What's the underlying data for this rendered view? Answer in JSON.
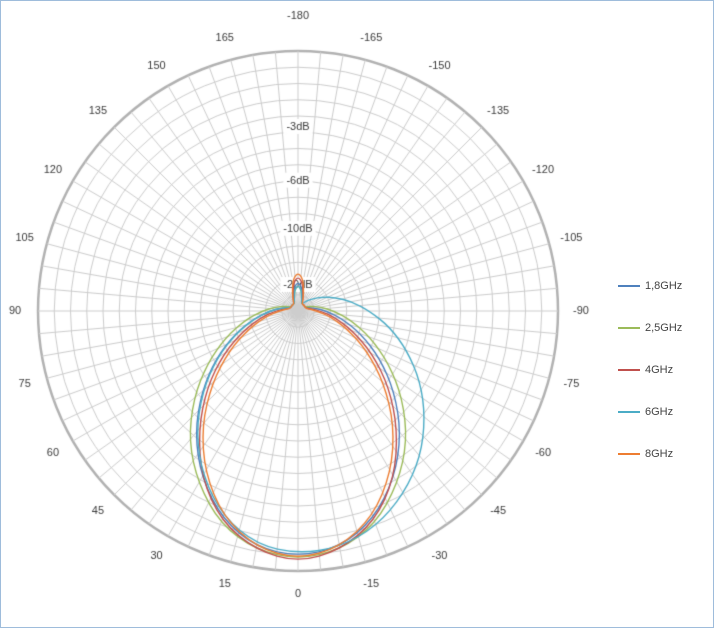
{
  "figure": {
    "background_color": "#ffffff",
    "border_color": "#9ebcdb",
    "grid_color": "#cdcdcd",
    "outer_ring_color": "#b2b2b2",
    "label_color": "#3c3c3c"
  },
  "chart_data": {
    "type": "line",
    "subtype": "polar-radiation-pattern",
    "title": "",
    "angle_unit": "degrees",
    "angle_zero_position": "bottom",
    "positive_angles_side": "left",
    "angle_ticks": [
      -180,
      -165,
      -150,
      -135,
      -120,
      -105,
      -90,
      -75,
      -60,
      -45,
      -30,
      -15,
      0,
      15,
      30,
      45,
      60,
      75,
      90,
      105,
      120,
      135,
      150,
      165
    ],
    "angle_tick_labels": [
      "-180",
      "-165",
      "-150",
      "-135",
      "-120",
      "-105",
      "-90",
      "-75",
      "-60",
      "-45",
      "-30",
      "-15",
      "0",
      "15",
      "30",
      "45",
      "60",
      "75",
      "90",
      "105",
      "120",
      "135",
      "150",
      "165"
    ],
    "radial_scale": "amplitude, r = 10^(dB/20), 0 dB at outer ring",
    "radial_range_db": [
      -30,
      0
    ],
    "radial_ticks": [
      {
        "label": "-3dB",
        "db": -3
      },
      {
        "label": "-6dB",
        "db": -6
      },
      {
        "label": "-10dB",
        "db": -10
      },
      {
        "label": "-20dB",
        "db": -20
      }
    ],
    "grid": {
      "rings": 16,
      "spoke_step_deg": 5,
      "on": true
    },
    "legend_position": "right",
    "angles_deg": [
      -180,
      -170,
      -160,
      -150,
      -140,
      -130,
      -120,
      -110,
      -100,
      -90,
      -80,
      -70,
      -60,
      -50,
      -40,
      -30,
      -20,
      -10,
      0,
      10,
      20,
      30,
      40,
      50,
      60,
      70,
      80,
      90,
      100,
      110,
      120,
      130,
      140,
      150,
      160,
      170,
      180
    ],
    "series": [
      {
        "name": "1,8GHz",
        "color": "#4F81BD",
        "values_db": [
          -19,
          -20.9,
          -26.7,
          -30,
          -30,
          -30,
          -30,
          -28.5,
          -23.7,
          -19.3,
          -15.3,
          -11.8,
          -8.8,
          -6.3,
          -4.2,
          -2.6,
          -1.4,
          -0.7,
          -0.5,
          -0.7,
          -1.4,
          -2.6,
          -4.2,
          -6.3,
          -8.8,
          -11.8,
          -15.3,
          -19.3,
          -23.7,
          -28.5,
          -30,
          -30,
          -30,
          -30,
          -26.7,
          -20.9,
          -19
        ]
      },
      {
        "name": "2,5GHz",
        "color": "#9BBB59",
        "values_db": [
          -20,
          -21.9,
          -27.7,
          -30,
          -30,
          -30,
          -30,
          -25.5,
          -21.2,
          -17.2,
          -13.7,
          -10.6,
          -7.9,
          -5.6,
          -3.7,
          -2.3,
          -1.2,
          -0.6,
          -0.4,
          -0.6,
          -1.2,
          -2.3,
          -3.7,
          -5.6,
          -7.9,
          -10.6,
          -13.7,
          -17.2,
          -21.2,
          -25.5,
          -30,
          -30,
          -30,
          -30,
          -27.7,
          -21.9,
          -20
        ]
      },
      {
        "name": "4GHz",
        "color": "#C0504D",
        "values_db": [
          -17.5,
          -19.4,
          -25.2,
          -30,
          -30,
          -30,
          -30,
          -30,
          -26.3,
          -21.3,
          -16.9,
          -13,
          -9.6,
          -6.8,
          -4.5,
          -2.6,
          -1.3,
          -0.6,
          -0.3,
          -0.6,
          -1.3,
          -2.6,
          -4.5,
          -6.8,
          -9.6,
          -13,
          -16.9,
          -21.3,
          -26.3,
          -30,
          -30,
          -30,
          -30,
          -30,
          -25.2,
          -19.4,
          -17.5
        ]
      },
      {
        "name": "6GHz",
        "color": "#4BACC6",
        "values_db": [
          -20,
          -21.9,
          -27.7,
          -30,
          -26.1,
          -22.6,
          -19.4,
          -16.4,
          -13.6,
          -11.2,
          -8.9,
          -7,
          -5.3,
          -3.9,
          -2.7,
          -1.8,
          -1.1,
          -0.7,
          -0.6,
          -0.8,
          -1.5,
          -2.7,
          -4.3,
          -6.4,
          -8.9,
          -11.9,
          -15.4,
          -19.4,
          -23.8,
          -28.6,
          -30,
          -30,
          -30,
          -30,
          -27.7,
          -21.9,
          -20
        ]
      },
      {
        "name": "8GHz",
        "color": "#ED7D31",
        "values_db": [
          -16.5,
          -18.4,
          -24.2,
          -30,
          -30,
          -30,
          -30,
          -30,
          -27.5,
          -22.7,
          -18,
          -13.9,
          -10.3,
          -7.3,
          -4.8,
          -2.9,
          -1.5,
          -0.7,
          -0.4,
          -0.7,
          -1.5,
          -2.9,
          -4.8,
          -7.3,
          -10.3,
          -13.9,
          -18,
          -22.7,
          -27.5,
          -30,
          -30,
          -30,
          -30,
          -30,
          -24.2,
          -18.4,
          -16.5
        ]
      }
    ]
  }
}
